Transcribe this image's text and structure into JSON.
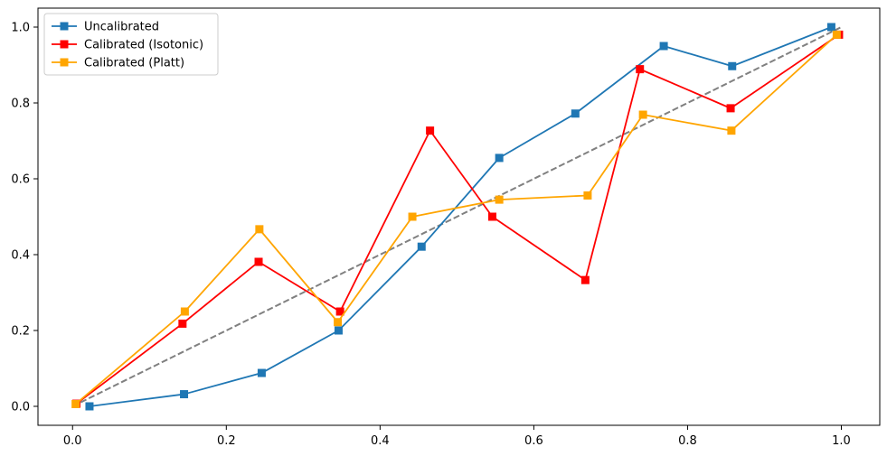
{
  "chart_data": {
    "type": "line",
    "title": "",
    "xlabel": "",
    "ylabel": "",
    "xlim": [
      -0.045,
      1.05
    ],
    "ylim": [
      -0.05,
      1.05
    ],
    "xticks": [
      0.0,
      0.2,
      0.4,
      0.6,
      0.8,
      1.0
    ],
    "xtick_labels": [
      "0.0",
      "0.2",
      "0.4",
      "0.6",
      "0.8",
      "1.0"
    ],
    "yticks": [
      0.0,
      0.2,
      0.4,
      0.6,
      0.8,
      1.0
    ],
    "ytick_labels": [
      "0.0",
      "0.2",
      "0.4",
      "0.6",
      "0.8",
      "1.0"
    ],
    "grid": false,
    "legend_position": "upper-left",
    "reference_line": {
      "x": [
        0.0,
        1.0
      ],
      "y": [
        0.0,
        1.0
      ],
      "color": "#808080",
      "style": "dashed"
    },
    "series": [
      {
        "name": "Uncalibrated",
        "color": "#1f77b4",
        "marker": "square",
        "x": [
          0.022,
          0.145,
          0.246,
          0.346,
          0.454,
          0.555,
          0.654,
          0.769,
          0.858,
          0.987
        ],
        "y": [
          0.0,
          0.032,
          0.088,
          0.2,
          0.421,
          0.655,
          0.772,
          0.95,
          0.897,
          1.0
        ]
      },
      {
        "name": "Calibrated (Isotonic)",
        "color": "#ff0000",
        "marker": "square",
        "x": [
          0.005,
          0.143,
          0.242,
          0.348,
          0.465,
          0.546,
          0.667,
          0.738,
          0.856,
          0.997
        ],
        "y": [
          0.007,
          0.218,
          0.381,
          0.25,
          0.727,
          0.5,
          0.333,
          0.889,
          0.786,
          0.98
        ]
      },
      {
        "name": "Calibrated (Platt)",
        "color": "#ffa500",
        "marker": "square",
        "x": [
          0.004,
          0.146,
          0.243,
          0.345,
          0.442,
          0.555,
          0.67,
          0.742,
          0.857,
          0.994
        ],
        "y": [
          0.006,
          0.25,
          0.467,
          0.222,
          0.5,
          0.545,
          0.556,
          0.769,
          0.727,
          0.98
        ]
      }
    ]
  }
}
